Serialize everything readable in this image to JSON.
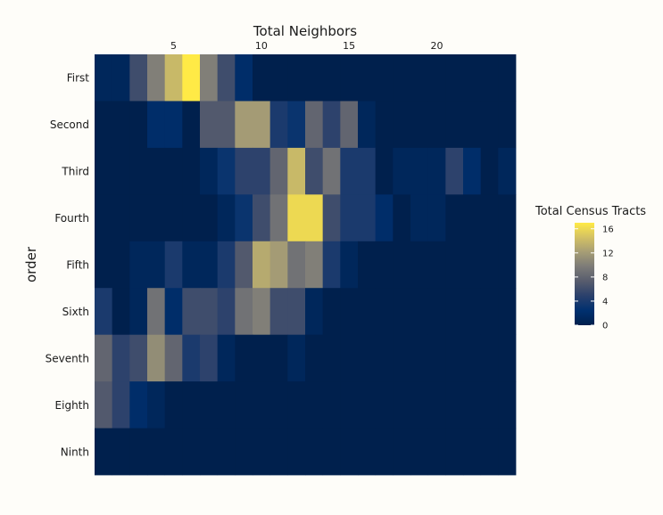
{
  "chart_data": {
    "type": "heatmap",
    "xlabel": "Total Neighbors",
    "ylabel": "order",
    "x_ticks": [
      5,
      10,
      15,
      20
    ],
    "x_range": [
      1,
      24
    ],
    "rows": [
      "First",
      "Second",
      "Third",
      "Fourth",
      "Fifth",
      "Sixth",
      "Seventh",
      "Eighth",
      "Ninth"
    ],
    "values": [
      [
        1,
        1,
        6,
        10,
        14,
        17,
        10,
        6,
        2,
        0,
        0,
        0,
        0,
        0,
        0,
        0,
        0,
        0,
        0,
        0,
        0,
        0,
        0,
        0
      ],
      [
        0,
        0,
        0,
        2,
        2,
        0,
        7,
        7,
        12,
        12,
        4,
        3,
        8,
        5,
        8,
        1,
        0,
        0,
        0,
        0,
        0,
        0,
        0,
        0
      ],
      [
        0,
        0,
        0,
        0,
        0,
        0,
        1,
        3,
        5,
        5,
        8,
        14,
        6,
        9,
        4,
        4,
        0,
        1,
        1,
        1,
        5,
        2,
        0,
        1
      ],
      [
        0,
        0,
        0,
        0,
        0,
        0,
        0,
        1,
        3,
        6,
        9,
        16,
        16,
        6,
        4,
        4,
        2,
        0,
        1,
        1,
        0,
        0,
        0,
        0
      ],
      [
        0,
        0,
        1,
        1,
        4,
        1,
        1,
        4,
        7,
        13,
        12,
        9,
        10,
        4,
        1,
        0,
        0,
        0,
        0,
        0,
        0,
        0,
        0,
        0
      ],
      [
        4,
        0,
        1,
        9,
        2,
        6,
        6,
        5,
        9,
        10,
        6,
        6,
        1,
        0,
        0,
        0,
        0,
        0,
        0,
        0,
        0,
        0,
        0,
        0
      ],
      [
        8,
        5,
        6,
        11,
        8,
        4,
        5,
        1,
        0,
        0,
        0,
        1,
        0,
        0,
        0,
        0,
        0,
        0,
        0,
        0,
        0,
        0,
        0,
        0
      ],
      [
        7,
        5,
        2,
        1,
        0,
        0,
        0,
        0,
        0,
        0,
        0,
        0,
        0,
        0,
        0,
        0,
        0,
        0,
        0,
        0,
        0,
        0,
        0,
        0
      ],
      [
        0,
        0,
        0,
        0,
        0,
        0,
        0,
        0,
        0,
        0,
        0,
        0,
        0,
        0,
        0,
        0,
        0,
        0,
        0,
        0,
        0,
        0,
        0,
        0
      ]
    ],
    "legend": {
      "title": "Total Census Tracts",
      "ticks": [
        0,
        4,
        8,
        12,
        16
      ],
      "range": [
        0,
        17
      ],
      "placement": "right"
    },
    "colorscale": [
      "#00204d",
      "#00306f",
      "#2a406c",
      "#575c6d",
      "#7c7b78",
      "#a69d75",
      "#d3c164",
      "#ffea46"
    ]
  }
}
